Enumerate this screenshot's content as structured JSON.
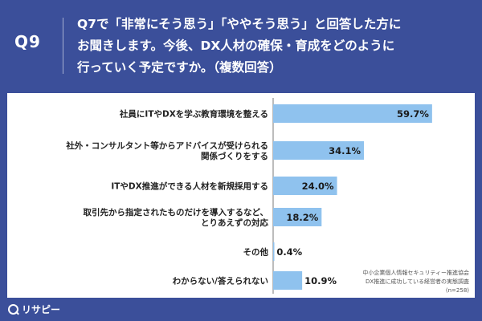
{
  "header": {
    "question_number": "Q9",
    "question_text": "Q7で「非常にそう思う」「ややそう思う」と回答した方に\nお聞きします。今後、DX人材の確保・育成をどのように\n行っていく予定ですか。（複数回答）"
  },
  "source": {
    "line1": "中小企業個人情報セキュリティー推進協会",
    "line2": "DX推進に成功している経営者の実態調査",
    "sample": "(n=258)"
  },
  "brand": {
    "name": "リサピー"
  },
  "colors": {
    "background": "#3b4f9a",
    "bar": "#8fc2ee",
    "text": "#222222"
  },
  "chart_data": {
    "type": "bar",
    "orientation": "horizontal",
    "categories": [
      "社員にITやDXを学ぶ教育環境を整える",
      "社外・コンサルタント等からアドバイスが受けられる\n関係づくりをする",
      "ITやDX推進ができる人材を新規採用する",
      "取引先から指定されたものだけを導入するなど、\nとりあえずの対応",
      "その他",
      "わからない/答えられない"
    ],
    "values": [
      59.7,
      34.1,
      24.0,
      18.2,
      0.4,
      10.9
    ],
    "value_labels": [
      "59.7%",
      "34.1%",
      "24.0%",
      "18.2%",
      "0.4%",
      "10.9%"
    ],
    "unit": "%",
    "xlim": [
      0,
      70
    ]
  }
}
